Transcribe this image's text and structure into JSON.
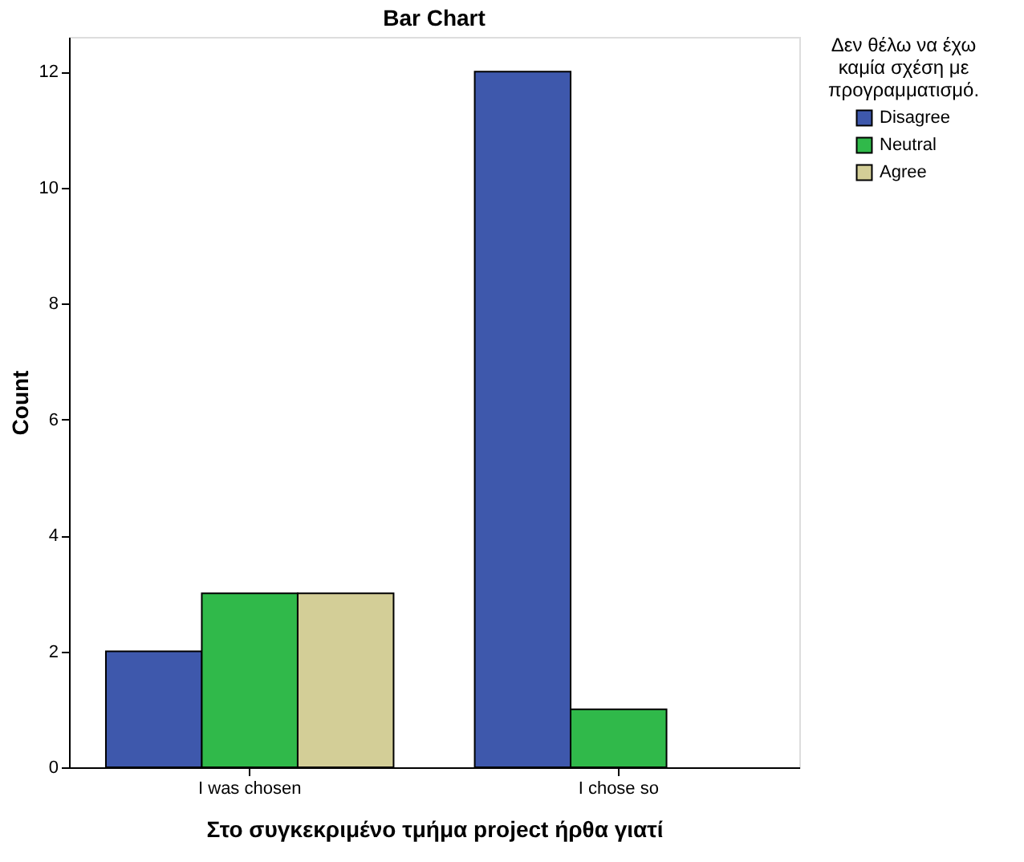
{
  "chart_data": {
    "type": "bar",
    "title": "Bar Chart",
    "xlabel": "Στο συγκεκριμένο τμήμα project ήρθα γιατί",
    "ylabel": "Count",
    "legend_title": "Δεν θέλω να έχω καμία σχέση με προγραμματισμό.",
    "legend": "right",
    "grid": false,
    "categories": [
      "I was chosen",
      "I chose so"
    ],
    "series": [
      {
        "name": "Disagree",
        "color": "#3e58ac",
        "values": [
          2,
          12
        ]
      },
      {
        "name": "Neutral",
        "color": "#30b94a",
        "values": [
          3,
          1
        ]
      },
      {
        "name": "Agree",
        "color": "#d3ce97",
        "values": [
          3,
          null
        ]
      }
    ],
    "ylim": [
      0,
      12.6
    ],
    "yticks": [
      0,
      2,
      4,
      6,
      8,
      10,
      12
    ]
  }
}
